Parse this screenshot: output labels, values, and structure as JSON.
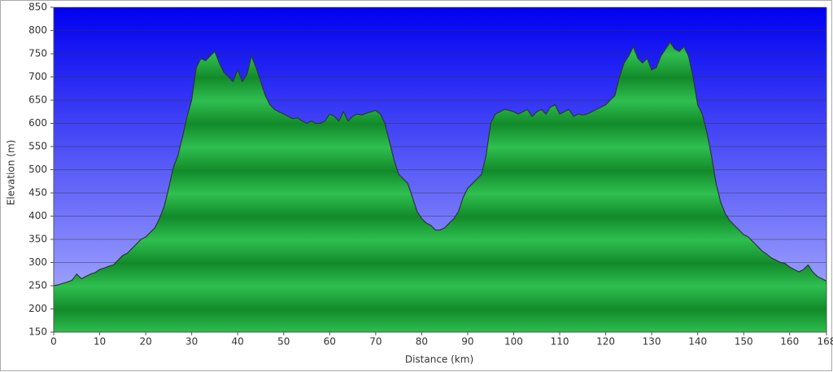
{
  "chart_data": {
    "type": "area",
    "xlabel": "Distance  (km)",
    "ylabel": "Elevation (m)",
    "x": [
      0,
      1,
      2,
      3,
      4,
      5,
      6,
      7,
      8,
      9,
      10,
      11,
      12,
      13,
      14,
      15,
      16,
      17,
      18,
      19,
      20,
      21,
      22,
      23,
      24,
      25,
      26,
      27,
      28,
      29,
      30,
      31,
      32,
      33,
      34,
      35,
      36,
      37,
      38,
      39,
      40,
      41,
      42,
      43,
      44,
      45,
      46,
      47,
      48,
      49,
      50,
      51,
      52,
      53,
      54,
      55,
      56,
      57,
      58,
      59,
      60,
      61,
      62,
      63,
      64,
      65,
      66,
      67,
      68,
      69,
      70,
      71,
      72,
      73,
      74,
      75,
      76,
      77,
      78,
      79,
      80,
      81,
      82,
      83,
      84,
      85,
      86,
      87,
      88,
      89,
      90,
      91,
      92,
      93,
      94,
      95,
      96,
      97,
      98,
      99,
      100,
      101,
      102,
      103,
      104,
      105,
      106,
      107,
      108,
      109,
      110,
      111,
      112,
      113,
      114,
      115,
      116,
      117,
      118,
      119,
      120,
      121,
      122,
      123,
      124,
      125,
      126,
      127,
      128,
      129,
      130,
      131,
      132,
      133,
      134,
      135,
      136,
      137,
      138,
      139,
      140,
      141,
      142,
      143,
      144,
      145,
      146,
      147,
      148,
      149,
      150,
      151,
      152,
      153,
      154,
      155,
      156,
      157,
      158,
      159,
      160,
      161,
      162,
      163,
      164,
      165,
      166,
      167,
      168
    ],
    "values": [
      250,
      252,
      255,
      258,
      262,
      275,
      265,
      270,
      275,
      278,
      285,
      288,
      292,
      295,
      305,
      315,
      320,
      330,
      340,
      350,
      355,
      365,
      375,
      395,
      420,
      460,
      505,
      530,
      570,
      615,
      650,
      720,
      740,
      735,
      745,
      755,
      730,
      710,
      700,
      690,
      715,
      690,
      705,
      745,
      720,
      690,
      660,
      640,
      630,
      625,
      620,
      615,
      610,
      612,
      605,
      600,
      605,
      600,
      600,
      605,
      620,
      615,
      605,
      625,
      605,
      615,
      620,
      618,
      622,
      625,
      628,
      620,
      600,
      560,
      520,
      490,
      480,
      470,
      440,
      410,
      395,
      385,
      380,
      370,
      370,
      375,
      385,
      395,
      410,
      440,
      460,
      470,
      480,
      490,
      530,
      600,
      620,
      625,
      630,
      628,
      625,
      620,
      625,
      630,
      615,
      625,
      630,
      620,
      635,
      640,
      620,
      625,
      630,
      615,
      620,
      618,
      620,
      625,
      630,
      635,
      640,
      650,
      660,
      700,
      730,
      745,
      765,
      740,
      730,
      740,
      715,
      720,
      745,
      760,
      775,
      760,
      755,
      765,
      745,
      700,
      640,
      620,
      580,
      530,
      470,
      430,
      405,
      390,
      380,
      370,
      360,
      355,
      345,
      335,
      325,
      318,
      310,
      305,
      300,
      298,
      290,
      285,
      280,
      285,
      295,
      280,
      270,
      265,
      260
    ],
    "xlim": [
      0,
      168
    ],
    "ylim": [
      150,
      850
    ],
    "xticks": [
      0,
      10,
      20,
      30,
      40,
      50,
      60,
      70,
      80,
      90,
      100,
      110,
      120,
      130,
      140,
      150,
      160,
      168
    ],
    "yticks": [
      150,
      200,
      250,
      300,
      350,
      400,
      450,
      500,
      550,
      600,
      650,
      700,
      750,
      800,
      850
    ],
    "grid": true,
    "color": "#22a83c"
  }
}
